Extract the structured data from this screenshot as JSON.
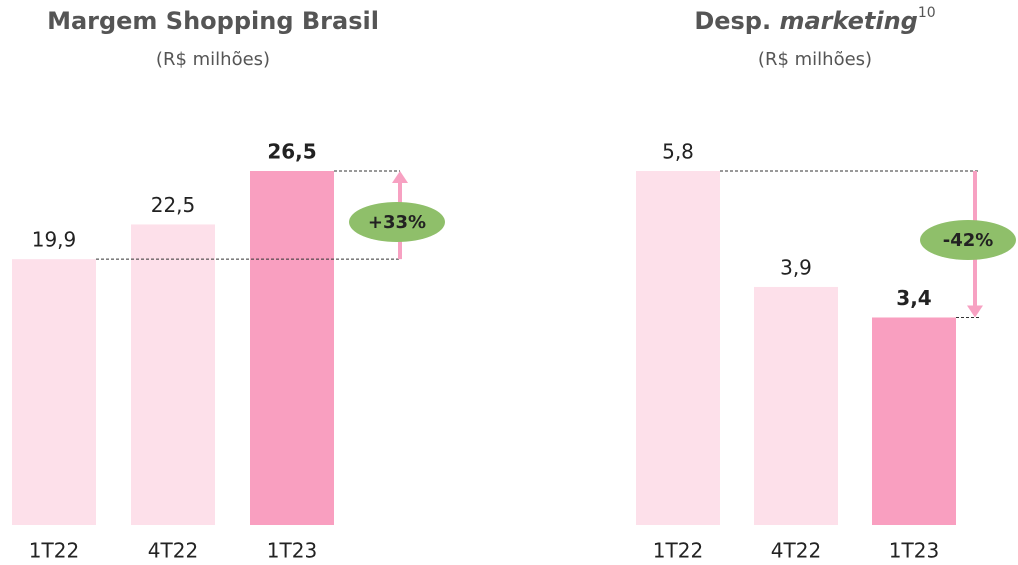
{
  "chart_data": [
    {
      "type": "bar",
      "title": "Margem Shopping Brasil",
      "subtitle": "(R$ milhões)",
      "categories": [
        "1T22",
        "4T22",
        "1T23"
      ],
      "values": [
        19.9,
        22.5,
        26.5
      ],
      "value_labels": [
        "19,9",
        "22,5",
        "26,5"
      ],
      "colors": [
        "#fde0ea",
        "#fde0ea",
        "#f99fc0"
      ],
      "highlight": 2,
      "ylim": [
        0,
        26.5
      ],
      "annotation": "+33%",
      "annotation_color": "#8fbf6a",
      "arrow_color": "#f7a1c2"
    },
    {
      "type": "bar",
      "title": "Desp.",
      "title_emphasis": "marketing",
      "title_note": "10",
      "subtitle": "(R$ milhões)",
      "categories": [
        "1T22",
        "4T22",
        "1T23"
      ],
      "values": [
        5.8,
        3.9,
        3.4
      ],
      "value_labels": [
        "5,8",
        "3,9",
        "3,4"
      ],
      "colors": [
        "#fde0ea",
        "#fde0ea",
        "#f99fc0"
      ],
      "highlight": 2,
      "ylim": [
        0,
        5.8
      ],
      "annotation": "-42%",
      "annotation_color": "#8fbf6a",
      "arrow_color": "#f7a1c2"
    }
  ]
}
